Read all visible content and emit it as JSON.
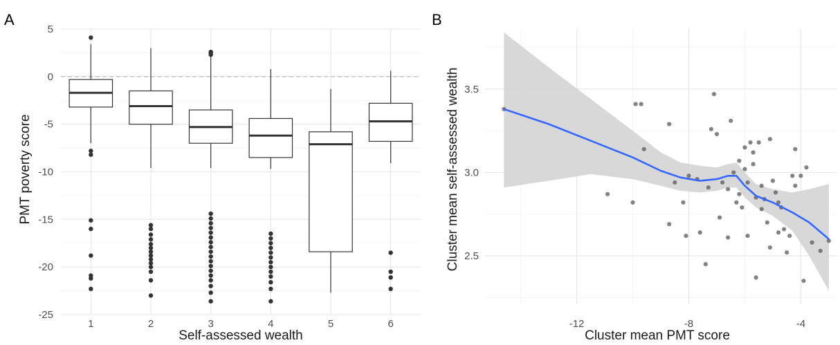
{
  "panels": {
    "a_label": "A",
    "b_label": "B"
  },
  "chart_data": [
    {
      "type": "box",
      "xlabel": "Self-assessed wealth",
      "ylabel": "PMT poverty score",
      "categories": [
        "1",
        "2",
        "3",
        "4",
        "5",
        "6"
      ],
      "ylim": [
        -25,
        5
      ],
      "yticks": [
        -25,
        -20,
        -15,
        -10,
        -5,
        0,
        5
      ],
      "grid": true,
      "reference_line": {
        "y": 0,
        "style": "dashed"
      },
      "boxes": [
        {
          "category": "1",
          "lower_whisker": -7.0,
          "q1": -3.2,
          "median": -1.7,
          "q3": -0.3,
          "upper_whisker": 3.4,
          "outliers": [
            4.1,
            -7.8,
            -8.2,
            -15.1,
            -16.0,
            -18.8,
            -20.9,
            -21.2,
            -22.3
          ]
        },
        {
          "category": "2",
          "lower_whisker": -9.6,
          "q1": -5.0,
          "median": -3.1,
          "q3": -1.5,
          "upper_whisker": 3.0,
          "outliers": [
            -15.6,
            -16.0,
            -16.6,
            -17.1,
            -17.6,
            -18.0,
            -18.4,
            -18.8,
            -19.2,
            -19.6,
            -20.0,
            -20.5,
            -21.4,
            -23.0
          ]
        },
        {
          "category": "3",
          "lower_whisker": -9.6,
          "q1": -7.0,
          "median": -5.3,
          "q3": -3.5,
          "upper_whisker": 2.2,
          "outliers": [
            2.3,
            2.5,
            2.6,
            -14.4,
            -14.9,
            -15.4,
            -15.9,
            -16.4,
            -16.9,
            -17.4,
            -17.9,
            -18.4,
            -18.9,
            -19.4,
            -19.9,
            -20.4,
            -20.9,
            -21.4,
            -22.0,
            -22.7,
            -23.6
          ]
        },
        {
          "category": "4",
          "lower_whisker": -9.7,
          "q1": -8.5,
          "median": -6.2,
          "q3": -4.4,
          "upper_whisker": 0.8,
          "outliers": [
            -16.5,
            -17.0,
            -17.5,
            -18.0,
            -18.5,
            -19.0,
            -19.5,
            -20.0,
            -20.5,
            -21.0,
            -21.6,
            -22.3,
            -23.6
          ]
        },
        {
          "category": "5",
          "lower_whisker": -22.7,
          "q1": -18.4,
          "median": -7.1,
          "q3": -5.8,
          "upper_whisker": -1.3,
          "outliers": []
        },
        {
          "category": "6",
          "lower_whisker": -9.1,
          "q1": -6.8,
          "median": -4.7,
          "q3": -2.8,
          "upper_whisker": 0.6,
          "outliers": [
            -18.5,
            -20.5,
            -21.1,
            -22.3
          ]
        }
      ]
    },
    {
      "type": "scatter",
      "xlabel": "Cluster mean PMT score",
      "ylabel": "Cluster mean self-assessed wealth",
      "xlim": [
        -15.3,
        -2.7
      ],
      "ylim": [
        2.21,
        3.86
      ],
      "xticks": [
        -12,
        -8,
        -4
      ],
      "yticks": [
        2.5,
        3.0,
        3.5
      ],
      "grid": true,
      "line_color": "#3366ff",
      "band_color": "#d4d4d4",
      "point_color": "#5a5a5a",
      "points": [
        [
          -14.6,
          3.38
        ],
        [
          -10.0,
          2.82
        ],
        [
          -9.9,
          3.41
        ],
        [
          -9.7,
          3.41
        ],
        [
          -9.6,
          3.14
        ],
        [
          -10.9,
          2.87
        ],
        [
          -8.7,
          3.29
        ],
        [
          -8.7,
          2.69
        ],
        [
          -8.5,
          2.94
        ],
        [
          -8.2,
          2.82
        ],
        [
          -8.0,
          2.98
        ],
        [
          -7.7,
          2.96
        ],
        [
          -7.4,
          2.45
        ],
        [
          -7.3,
          2.91
        ],
        [
          -7.2,
          3.26
        ],
        [
          -7.1,
          3.47
        ],
        [
          -7.0,
          3.23
        ],
        [
          -6.8,
          2.94
        ],
        [
          -6.6,
          2.9
        ],
        [
          -6.5,
          3.31
        ],
        [
          -6.4,
          3.0
        ],
        [
          -6.3,
          2.82
        ],
        [
          -6.2,
          3.07
        ],
        [
          -6.0,
          3.15
        ],
        [
          -6.0,
          3.02
        ],
        [
          -5.9,
          2.94
        ],
        [
          -5.8,
          3.18
        ],
        [
          -5.7,
          3.12
        ],
        [
          -5.7,
          3.05
        ],
        [
          -5.6,
          2.85
        ],
        [
          -5.5,
          3.18
        ],
        [
          -5.4,
          2.92
        ],
        [
          -5.3,
          2.84
        ],
        [
          -5.2,
          2.7
        ],
        [
          -5.1,
          3.2
        ],
        [
          -5.0,
          2.95
        ],
        [
          -4.9,
          2.88
        ],
        [
          -4.8,
          2.82
        ],
        [
          -4.7,
          2.79
        ],
        [
          -4.6,
          2.66
        ],
        [
          -4.5,
          2.52
        ],
        [
          -4.4,
          2.62
        ],
        [
          -4.3,
          2.98
        ],
        [
          -4.2,
          2.92
        ],
        [
          -4.0,
          2.98
        ],
        [
          -3.9,
          2.35
        ],
        [
          -3.8,
          3.03
        ],
        [
          -3.6,
          2.58
        ],
        [
          -3.3,
          2.53
        ],
        [
          -3.0,
          2.59
        ],
        [
          -5.6,
          2.37
        ],
        [
          -6.9,
          2.73
        ],
        [
          -7.6,
          2.64
        ],
        [
          -6.2,
          2.87
        ],
        [
          -5.4,
          2.78
        ],
        [
          -5.9,
          2.62
        ],
        [
          -4.8,
          2.64
        ],
        [
          -6.6,
          2.61
        ],
        [
          -5.1,
          2.55
        ],
        [
          -4.2,
          3.14
        ],
        [
          -8.1,
          2.62
        ],
        [
          -6.1,
          2.79
        ]
      ],
      "fit_line": [
        [
          -14.6,
          3.38
        ],
        [
          -13.0,
          3.29
        ],
        [
          -11.5,
          3.19
        ],
        [
          -10.0,
          3.09
        ],
        [
          -9.0,
          3.01
        ],
        [
          -8.3,
          2.97
        ],
        [
          -7.6,
          2.95
        ],
        [
          -7.0,
          2.96
        ],
        [
          -6.6,
          2.98
        ],
        [
          -6.3,
          2.98
        ],
        [
          -6.0,
          2.92
        ],
        [
          -5.6,
          2.86
        ],
        [
          -5.0,
          2.82
        ],
        [
          -4.3,
          2.76
        ],
        [
          -3.7,
          2.7
        ],
        [
          -3.0,
          2.6
        ]
      ],
      "confidence_band": {
        "x": [
          -14.6,
          -13.0,
          -11.5,
          -10.0,
          -9.0,
          -8.3,
          -7.6,
          -7.0,
          -6.6,
          -6.3,
          -6.0,
          -5.6,
          -5.0,
          -4.3,
          -3.7,
          -3.0
        ],
        "upper": [
          3.84,
          3.63,
          3.44,
          3.25,
          3.12,
          3.06,
          3.04,
          3.03,
          3.05,
          3.06,
          3.0,
          2.93,
          2.9,
          2.88,
          2.9,
          2.93
        ],
        "lower": [
          2.91,
          2.95,
          2.99,
          2.96,
          2.92,
          2.89,
          2.88,
          2.89,
          2.91,
          2.91,
          2.85,
          2.79,
          2.74,
          2.65,
          2.5,
          2.29
        ]
      }
    }
  ]
}
